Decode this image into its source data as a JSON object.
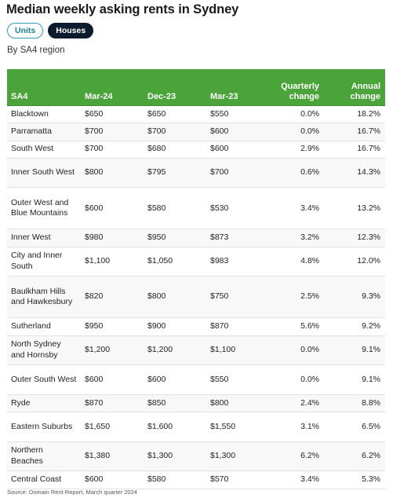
{
  "title": "Median weekly asking rents in Sydney",
  "toggles": {
    "units": "Units",
    "houses": "Houses",
    "active": "houses"
  },
  "subtitle": "By SA4 region",
  "source": "Source: Domain Rent Report, March quarter 2024",
  "colors": {
    "header_bg": "#4aa43a",
    "active_pill": "#0d1b2f",
    "inactive_pill_border": "#2a9fb8"
  },
  "chart_data": {
    "type": "table",
    "title": "Median weekly asking rents in Sydney",
    "subtitle": "By SA4 region",
    "columns": [
      "SA4",
      "Mar-24",
      "Dec-23",
      "Mar-23",
      "Quarterly change",
      "Annual change"
    ],
    "rows": [
      [
        "Blacktown",
        "$650",
        "$650",
        "$550",
        "0.0%",
        "18.2%"
      ],
      [
        "Parramatta",
        "$700",
        "$700",
        "$600",
        "0.0%",
        "16.7%"
      ],
      [
        "South West",
        "$700",
        "$680",
        "$600",
        "2.9%",
        "16.7%"
      ],
      [
        "Inner South West",
        "$800",
        "$795",
        "$700",
        "0.6%",
        "14.3%"
      ],
      [
        "Outer West and Blue Mountains",
        "$600",
        "$580",
        "$530",
        "3.4%",
        "13.2%"
      ],
      [
        "Inner West",
        "$980",
        "$950",
        "$873",
        "3.2%",
        "12.3%"
      ],
      [
        "City and Inner South",
        "$1,100",
        "$1,050",
        "$983",
        "4.8%",
        "12.0%"
      ],
      [
        "Baulkham Hills and Hawkesbury",
        "$820",
        "$800",
        "$750",
        "2.5%",
        "9.3%"
      ],
      [
        "Sutherland",
        "$950",
        "$900",
        "$870",
        "5.6%",
        "9.2%"
      ],
      [
        "North Sydney and Hornsby",
        "$1,200",
        "$1,200",
        "$1,100",
        "0.0%",
        "9.1%"
      ],
      [
        "Outer South West",
        "$600",
        "$600",
        "$550",
        "0.0%",
        "9.1%"
      ],
      [
        "Ryde",
        "$870",
        "$850",
        "$800",
        "2.4%",
        "8.8%"
      ],
      [
        "Eastern Suburbs",
        "$1,650",
        "$1,600",
        "$1,550",
        "3.1%",
        "6.5%"
      ],
      [
        "Northern Beaches",
        "$1,380",
        "$1,300",
        "$1,300",
        "6.2%",
        "6.2%"
      ],
      [
        "Central Coast",
        "$600",
        "$580",
        "$570",
        "3.4%",
        "5.3%"
      ]
    ]
  }
}
